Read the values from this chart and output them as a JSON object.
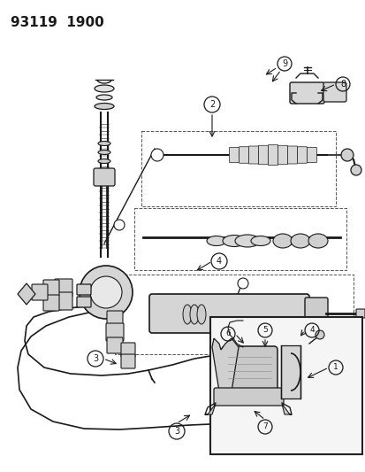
{
  "title": "93119  1900",
  "bg_color": "#ffffff",
  "line_color": "#1a1a1a",
  "title_fontsize": 11,
  "figsize": [
    4.14,
    5.33
  ],
  "dpi": 100
}
